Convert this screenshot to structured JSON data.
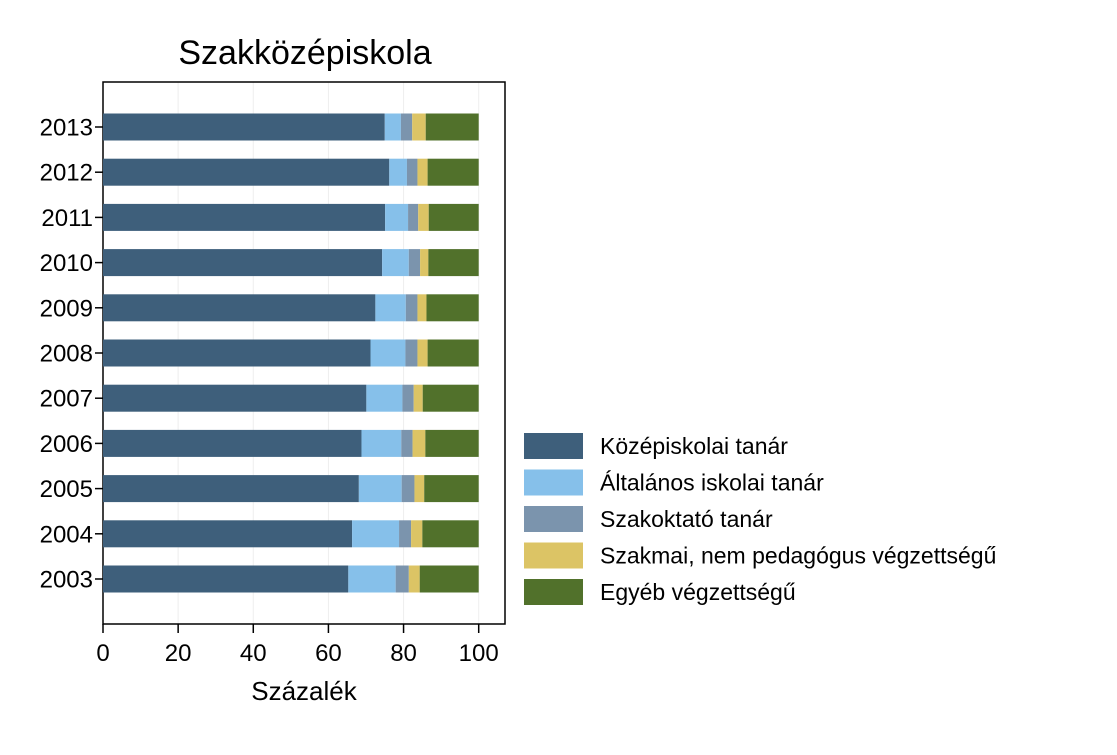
{
  "chart_data": {
    "type": "bar",
    "orientation": "horizontal",
    "stacked": true,
    "title": "Szakközépiskola",
    "xlabel": "Százalék",
    "ylabel": "",
    "xlim": [
      0,
      107
    ],
    "xticks": [
      0,
      20,
      40,
      60,
      80,
      100
    ],
    "grid": true,
    "legend_position": "right",
    "categories": [
      "2013",
      "2012",
      "2011",
      "2010",
      "2009",
      "2008",
      "2007",
      "2006",
      "2005",
      "2004",
      "2003"
    ],
    "series": [
      {
        "name": "Középiskolai tanár",
        "color": "#3e5f7b",
        "values": [
          75,
          76.2,
          75.1,
          74.3,
          72.5,
          71.2,
          70.1,
          68.8,
          68.1,
          66.3,
          65.3
        ]
      },
      {
        "name": "Általános iskolai tanár",
        "color": "#86c0ea",
        "values": [
          4.3,
          4.7,
          6.1,
          7.1,
          8.1,
          9.3,
          9.6,
          10.6,
          11.4,
          12.5,
          12.6
        ]
      },
      {
        "name": "Szakoktató tanár",
        "color": "#7b94ad",
        "values": [
          3,
          2.8,
          2.7,
          3,
          3.1,
          3.2,
          3,
          3,
          3.4,
          3.2,
          3.5
        ]
      },
      {
        "name": "Szakmai, nem pedagógus végzettségű",
        "color": "#dcc465",
        "values": [
          3.6,
          2.7,
          2.8,
          2.2,
          2.4,
          2.7,
          2.4,
          3.4,
          2.6,
          3,
          2.9
        ]
      },
      {
        "name": "Egyéb végzettségű",
        "color": "#51712b",
        "values": [
          14.1,
          13.6,
          13.3,
          13.4,
          13.9,
          13.6,
          14.9,
          14.2,
          14.5,
          15,
          15.7
        ]
      }
    ]
  }
}
